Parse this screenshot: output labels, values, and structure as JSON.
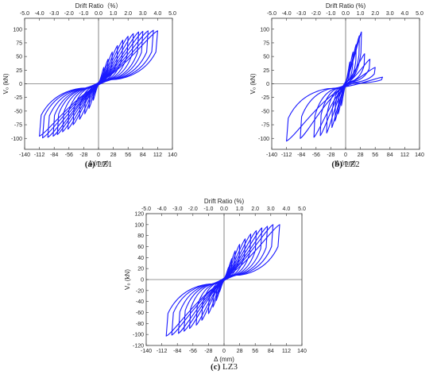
{
  "figure": {
    "panels": [
      {
        "id": "LZ1",
        "caption_letter": "(a)",
        "caption_text": " LZ1",
        "top_axis_title": "Drift Ratio（%）",
        "bottom_axis_title": "Δ (mm)",
        "y_axis_title": "V₀ (kN)"
      },
      {
        "id": "LZ2",
        "caption_letter": "(b)",
        "caption_text": " LZ2",
        "top_axis_title": "Drift Ratio (%)",
        "bottom_axis_title": "Δ (mm)",
        "y_axis_title": "V₀ (kN)"
      },
      {
        "id": "LZ3",
        "caption_letter": "(c)",
        "caption_text": " LZ3",
        "top_axis_title": "Drift Ratio (%)",
        "bottom_axis_title": "Δ (mm)",
        "y_axis_title": "V₀ (kN)"
      }
    ]
  },
  "chart_data": [
    {
      "type": "line",
      "name": "LZ1",
      "xlabel": "Δ (mm)",
      "ylabel": "V₀ (kN)",
      "top_axis_label": "Drift Ratio（%）",
      "xlim": [
        -140,
        140
      ],
      "ylim": [
        -120,
        120
      ],
      "x_ticks": [
        -140,
        -112,
        -84,
        -56,
        -28,
        0,
        28,
        56,
        84,
        112,
        140
      ],
      "y_ticks": [
        -100,
        -75,
        -50,
        -25,
        0,
        25,
        50,
        75,
        100
      ],
      "top_ticks": [
        -5.0,
        -4.0,
        -3.0,
        -2.0,
        -1.0,
        0.0,
        1.0,
        2.0,
        3.0,
        4.0,
        5.0
      ],
      "grid": false,
      "line_color": "#1a1aff",
      "loops": [
        {
          "d": 10,
          "F": 30,
          "dn": -10,
          "Fn": -30
        },
        {
          "d": 18,
          "F": 45,
          "dn": -18,
          "Fn": -45
        },
        {
          "d": 26,
          "F": 58,
          "dn": -26,
          "Fn": -55
        },
        {
          "d": 36,
          "F": 70,
          "dn": -36,
          "Fn": -65
        },
        {
          "d": 46,
          "F": 80,
          "dn": -48,
          "Fn": -75
        },
        {
          "d": 56,
          "F": 87,
          "dn": -58,
          "Fn": -83
        },
        {
          "d": 66,
          "F": 92,
          "dn": -68,
          "Fn": -88
        },
        {
          "d": 76,
          "F": 95,
          "dn": -78,
          "Fn": -93
        },
        {
          "d": 84,
          "F": 96,
          "dn": -86,
          "Fn": -96
        },
        {
          "d": 94,
          "F": 97,
          "dn": -96,
          "Fn": -98
        },
        {
          "d": 104,
          "F": 98,
          "dn": -106,
          "Fn": -99
        },
        {
          "d": 112,
          "F": 97,
          "dn": -112,
          "Fn": -96
        }
      ]
    },
    {
      "type": "line",
      "name": "LZ2",
      "xlabel": "Δ (mm)",
      "ylabel": "V₀ (kN)",
      "top_axis_label": "Drift Ratio (%)",
      "xlim": [
        -140,
        140
      ],
      "ylim": [
        -120,
        120
      ],
      "x_ticks": [
        -140,
        -112,
        -84,
        -56,
        -28,
        0,
        28,
        56,
        84,
        112,
        140
      ],
      "y_ticks": [
        -100,
        -75,
        -50,
        -25,
        0,
        25,
        50,
        75,
        100
      ],
      "top_ticks": [
        -5.0,
        -4.0,
        -3.0,
        -2.0,
        -1.0,
        0.0,
        1.0,
        2.0,
        3.0,
        4.0,
        5.0
      ],
      "grid": false,
      "line_color": "#1a1aff",
      "loops": [
        {
          "d": 8,
          "F": 40,
          "dn": -8,
          "Fn": -40
        },
        {
          "d": 14,
          "F": 58,
          "dn": -14,
          "Fn": -55
        },
        {
          "d": 20,
          "F": 72,
          "dn": -20,
          "Fn": -68
        },
        {
          "d": 26,
          "F": 88,
          "dn": -26,
          "Fn": -80
        },
        {
          "d": 30,
          "F": 95,
          "dn": -36,
          "Fn": -90
        },
        {
          "d": 36,
          "F": 55,
          "dn": -48,
          "Fn": -95
        },
        {
          "d": 46,
          "F": 45,
          "dn": -60,
          "Fn": -98
        },
        {
          "d": 56,
          "F": 30,
          "dn": -86,
          "Fn": -100
        },
        {
          "d": 70,
          "F": 12,
          "dn": -112,
          "Fn": -105
        }
      ]
    },
    {
      "type": "line",
      "name": "LZ3",
      "xlabel": "Δ (mm)",
      "ylabel": "V₀ (kN)",
      "top_axis_label": "Drift Ratio (%)",
      "xlim": [
        -140,
        140
      ],
      "ylim": [
        -120,
        120
      ],
      "x_ticks": [
        -140,
        -112,
        -84,
        -56,
        -28,
        0,
        28,
        56,
        84,
        112,
        140
      ],
      "y_ticks": [
        -120,
        -100,
        -80,
        -60,
        -40,
        -20,
        0,
        20,
        40,
        60,
        80,
        100,
        120
      ],
      "top_ticks": [
        -5.0,
        -4.0,
        -3.0,
        -2.0,
        -1.0,
        0.0,
        1.0,
        2.0,
        3.0,
        4.0,
        5.0
      ],
      "grid": false,
      "line_color": "#1a1aff",
      "loops": [
        {
          "d": 8,
          "F": 22,
          "dn": -8,
          "Fn": -22
        },
        {
          "d": 14,
          "F": 38,
          "dn": -14,
          "Fn": -38
        },
        {
          "d": 20,
          "F": 52,
          "dn": -20,
          "Fn": -50
        },
        {
          "d": 28,
          "F": 64,
          "dn": -28,
          "Fn": -62
        },
        {
          "d": 38,
          "F": 74,
          "dn": -40,
          "Fn": -74
        },
        {
          "d": 48,
          "F": 83,
          "dn": -50,
          "Fn": -83
        },
        {
          "d": 58,
          "F": 89,
          "dn": -62,
          "Fn": -89
        },
        {
          "d": 68,
          "F": 94,
          "dn": -72,
          "Fn": -94
        },
        {
          "d": 78,
          "F": 97,
          "dn": -82,
          "Fn": -98
        },
        {
          "d": 88,
          "F": 100,
          "dn": -94,
          "Fn": -101
        },
        {
          "d": 100,
          "F": 100,
          "dn": -104,
          "Fn": -103
        }
      ]
    }
  ]
}
